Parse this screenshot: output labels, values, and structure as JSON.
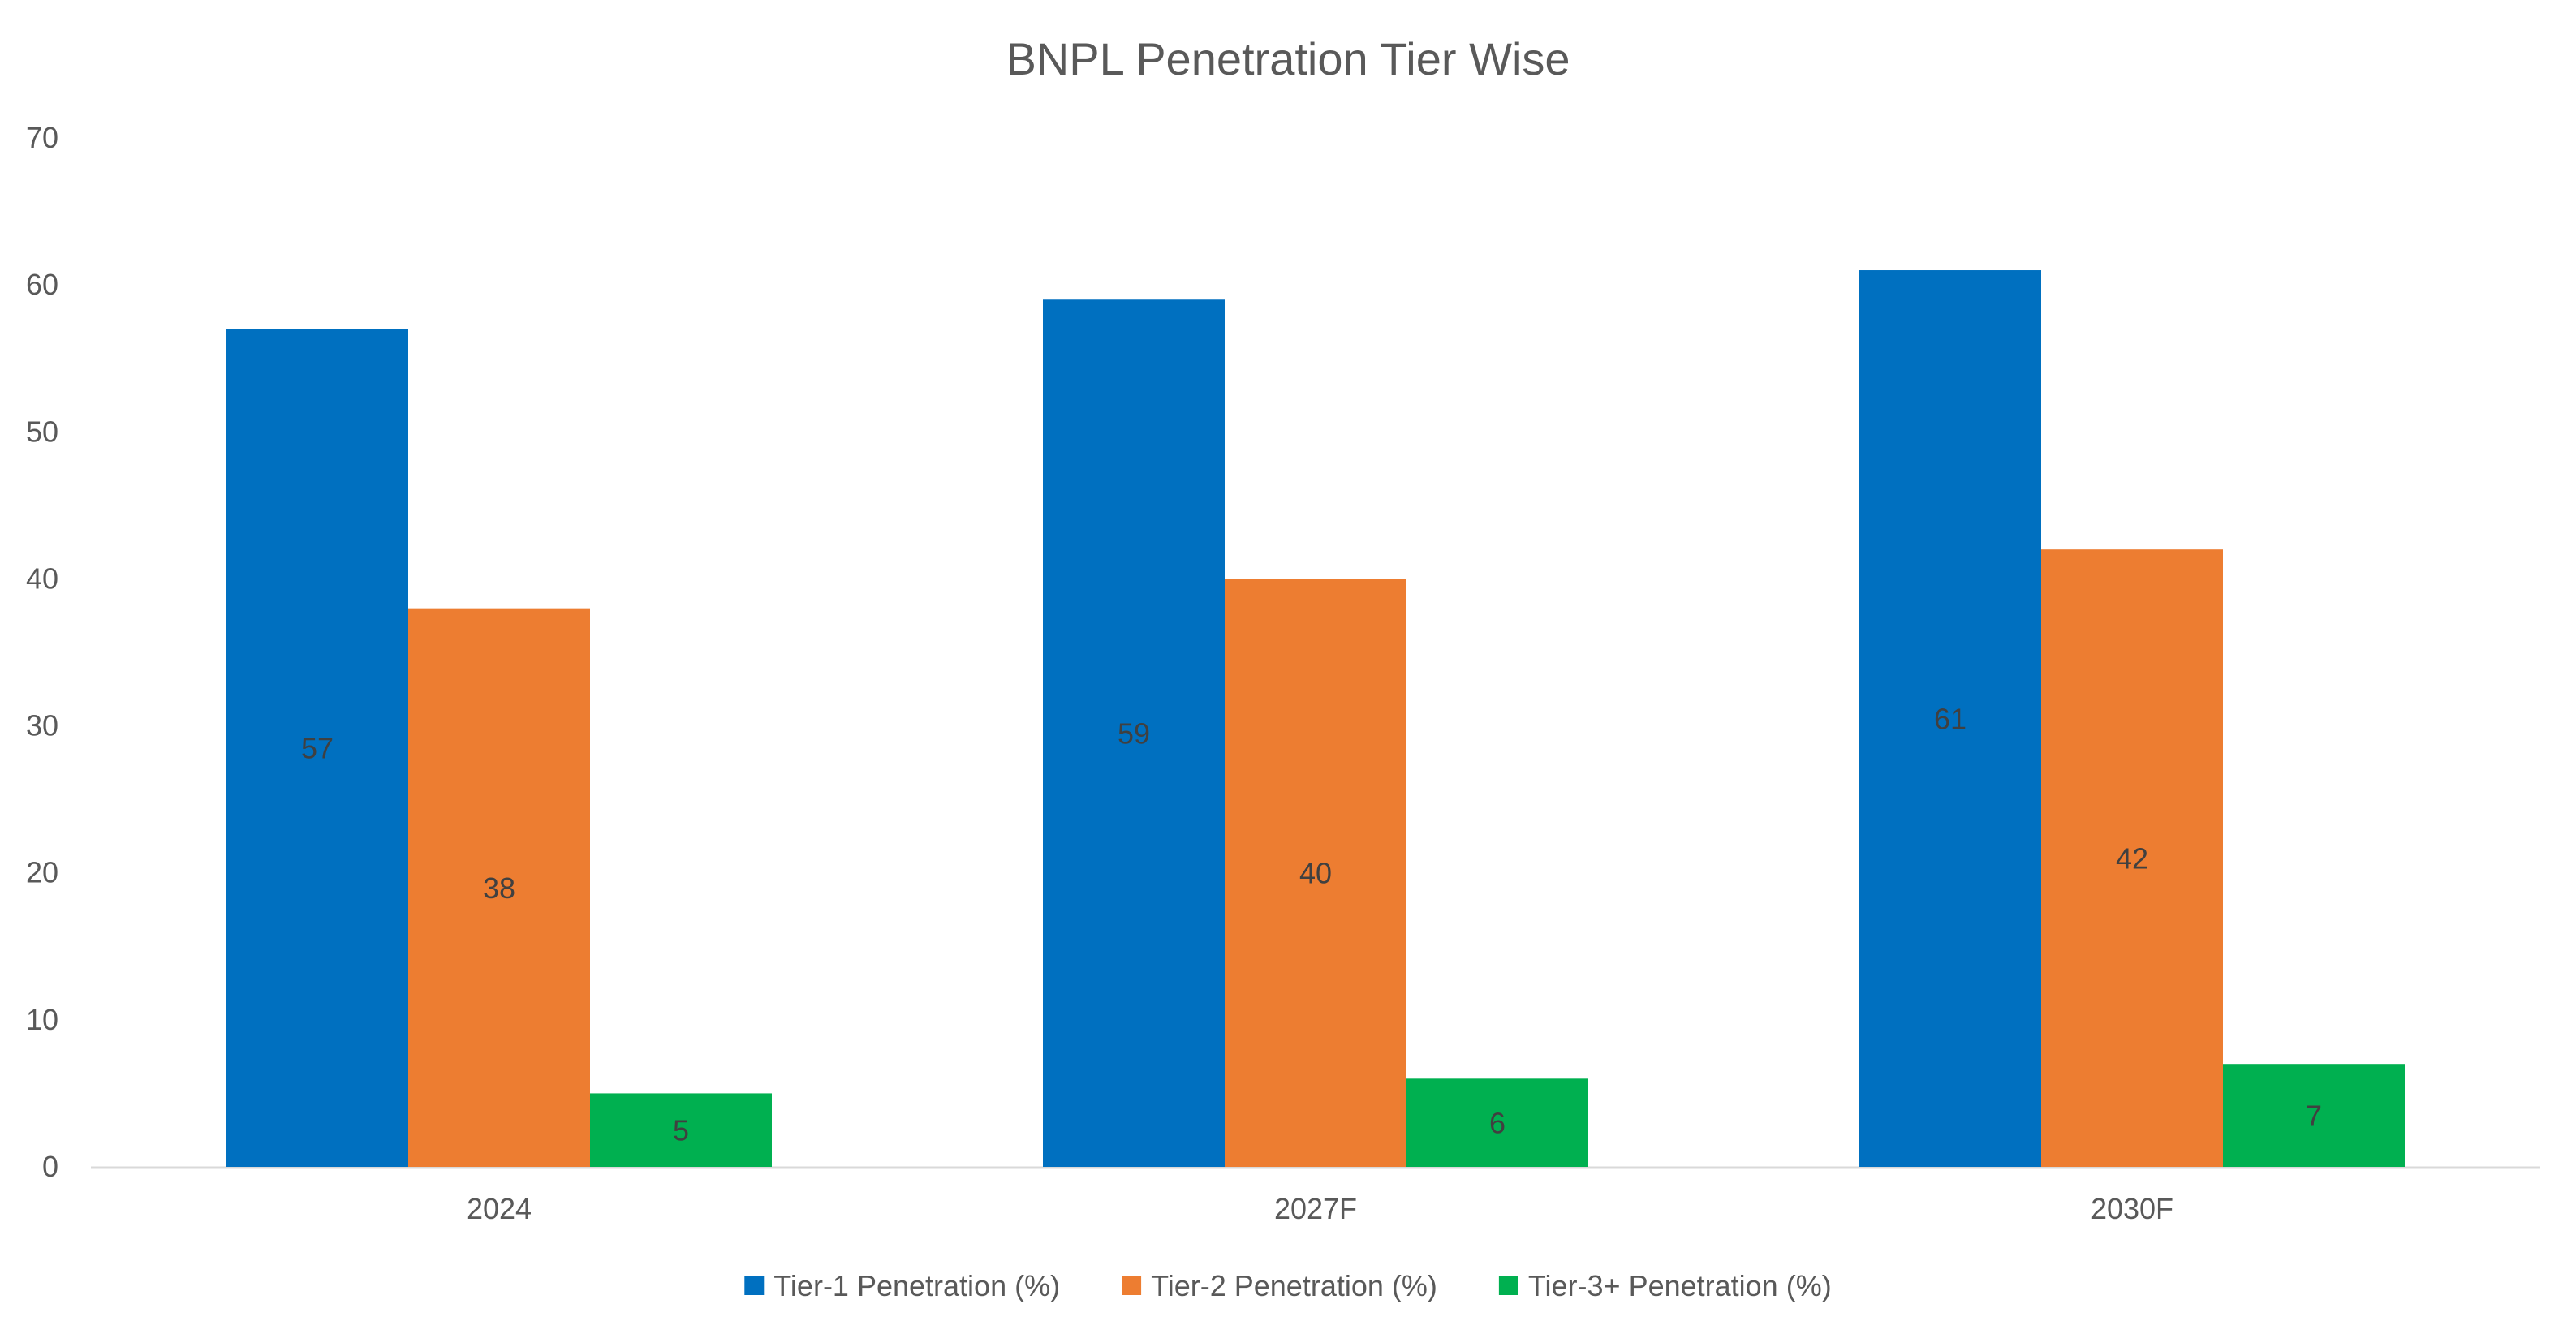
{
  "chart_data": {
    "type": "bar",
    "title": "BNPL Penetration Tier Wise",
    "xlabel": "",
    "ylabel": "",
    "categories": [
      "2024",
      "2027F",
      "2030F"
    ],
    "series": [
      {
        "name": "Tier-1 Penetration (%)",
        "values": [
          57,
          59,
          61
        ],
        "color": "#0070C0"
      },
      {
        "name": "Tier-2 Penetration (%)",
        "values": [
          38,
          40,
          42
        ],
        "color": "#ED7D31"
      },
      {
        "name": "Tier-3+ Penetration (%)",
        "values": [
          5,
          6,
          7
        ],
        "color": "#00B050"
      }
    ],
    "ylim": [
      0,
      70
    ],
    "yticks": [
      "0",
      "10",
      "20",
      "30",
      "40",
      "50",
      "60",
      "70"
    ],
    "grid": false,
    "legend": "bottom",
    "data_labels": true
  }
}
